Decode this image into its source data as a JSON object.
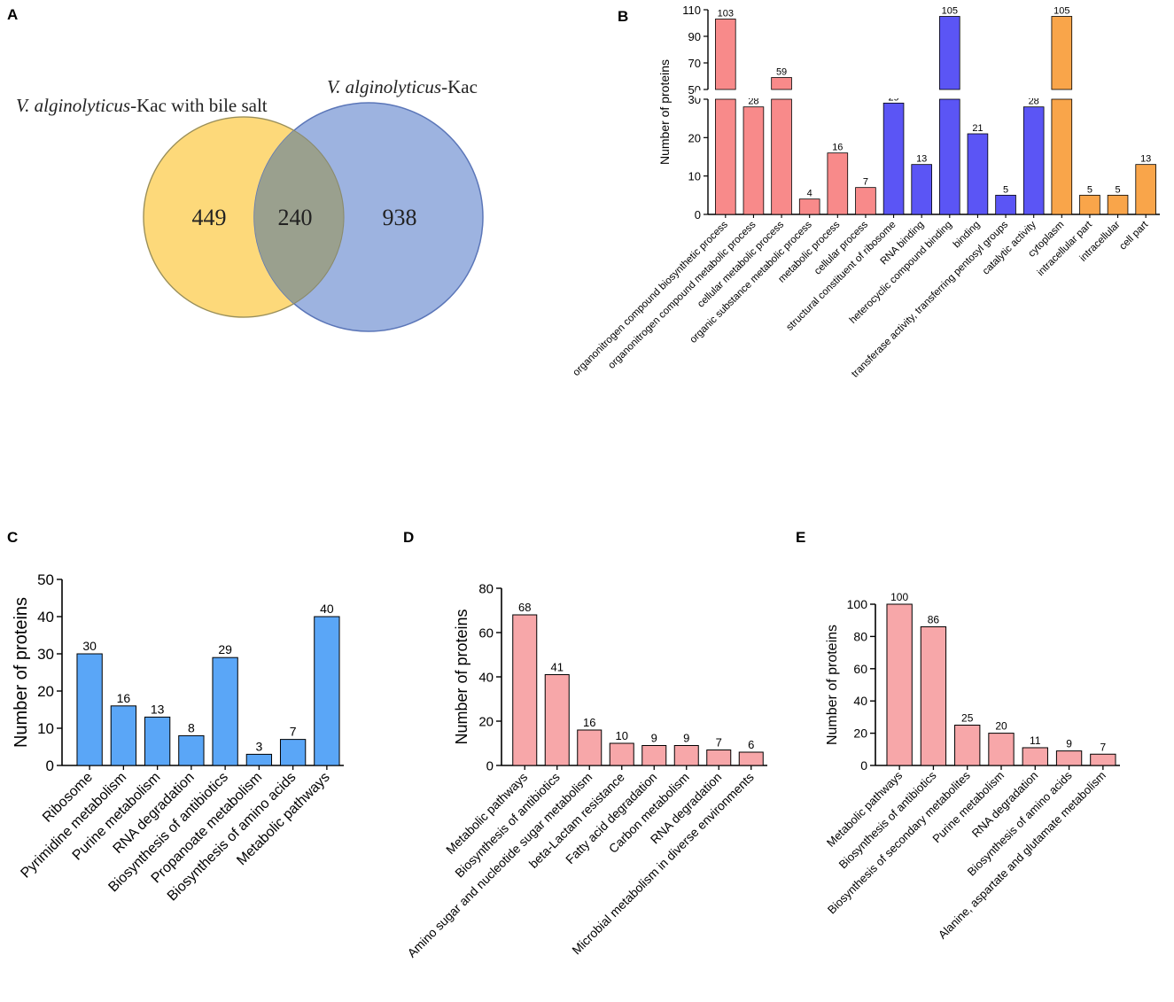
{
  "panel_labels": {
    "a": "A",
    "b": "B",
    "c": "C",
    "d": "D",
    "e": "E"
  },
  "venn": {
    "left_title_italic": "V. alginolyticus",
    "left_title_rest": "-Kac with bile salt",
    "right_title_italic": "V. alginolyticus",
    "right_title_rest": "-Kac",
    "left_only": "449",
    "overlap": "240",
    "right_only": "938",
    "colors": {
      "left": "#fdd97a",
      "right": "#8fa9dc",
      "overlap": "#9aa08e"
    }
  },
  "chart_data": [
    {
      "id": "B",
      "type": "bar",
      "ylabel": "Number of proteins",
      "broken_axis": true,
      "lower_range": [
        0,
        30
      ],
      "upper_range": [
        50,
        110
      ],
      "lower_ticks": [
        0,
        10,
        20,
        30
      ],
      "upper_ticks": [
        50,
        70,
        90,
        110
      ],
      "categories": [
        "organonitrogen compound biosynthetic process",
        "organonitrogen compound metabolic process",
        "cellular metabolic process",
        "organic substance metabolic process",
        "metabolic process",
        "cellular process",
        "structural constituent of ribosome",
        "RNA binding",
        "heterocyclic compound binding",
        "binding",
        "transferase activity, transferring pentosyl groups",
        "catalytic activity",
        "cytoplasm",
        "intracellular part",
        "intracellular",
        "cell part"
      ],
      "values": [
        103,
        28,
        59,
        4,
        16,
        7,
        29,
        13,
        105,
        21,
        5,
        28,
        105,
        5,
        5,
        13
      ],
      "groups": [
        "biological_process",
        "biological_process",
        "biological_process",
        "biological_process",
        "biological_process",
        "biological_process",
        "molecular_function",
        "molecular_function",
        "molecular_function",
        "molecular_function",
        "molecular_function",
        "molecular_function",
        "cellular_component",
        "cellular_component",
        "cellular_component",
        "cellular_component"
      ],
      "colors": {
        "biological_process": "#f88a8a",
        "molecular_function": "#5b55f5",
        "cellular_component": "#f9a54a"
      }
    },
    {
      "id": "C",
      "type": "bar",
      "ylabel": "Number of proteins",
      "ylim": [
        0,
        50
      ],
      "yticks": [
        0,
        10,
        20,
        30,
        40,
        50
      ],
      "color": "#5aa6f7",
      "categories": [
        "Ribosome",
        "Pyrimidine metabolism",
        "Purine metabolism",
        "RNA degradation",
        "Biosynthesis of antibiotics",
        "Propanoate metabolism",
        "Biosynthesis of amino acids",
        "Metabolic pathways"
      ],
      "values": [
        30,
        16,
        13,
        8,
        29,
        3,
        7,
        40
      ]
    },
    {
      "id": "D",
      "type": "bar",
      "ylabel": "Number of proteins",
      "ylim": [
        0,
        80
      ],
      "yticks": [
        0,
        20,
        40,
        60,
        80
      ],
      "color": "#f7a7a9",
      "categories": [
        "Metabolic pathways",
        "Biosynthesis of antibiotics",
        "Amino sugar and nucleotide sugar metabolism",
        "beta-Lactam resistance",
        "Fatty acid degradation",
        "Carbon metabolism",
        "RNA degradation",
        "Microbial metabolism in diverse environments"
      ],
      "values": [
        68,
        41,
        16,
        10,
        9,
        9,
        7,
        6
      ]
    },
    {
      "id": "E",
      "type": "bar",
      "ylabel": "Number of proteins",
      "ylim": [
        0,
        100
      ],
      "yticks": [
        0,
        20,
        40,
        60,
        80,
        100
      ],
      "color": "#f7a7a9",
      "categories": [
        "Metabolic pathways",
        "Biosynthesis of antibiotics",
        "Biosynthesis of secondary metabolites",
        "Purine metabolism",
        "RNA degradation",
        "Biosynthesis of amino acids",
        "Alanine, aspartate and glutamate metabolism"
      ],
      "values": [
        100,
        86,
        25,
        20,
        11,
        9,
        7
      ]
    }
  ]
}
